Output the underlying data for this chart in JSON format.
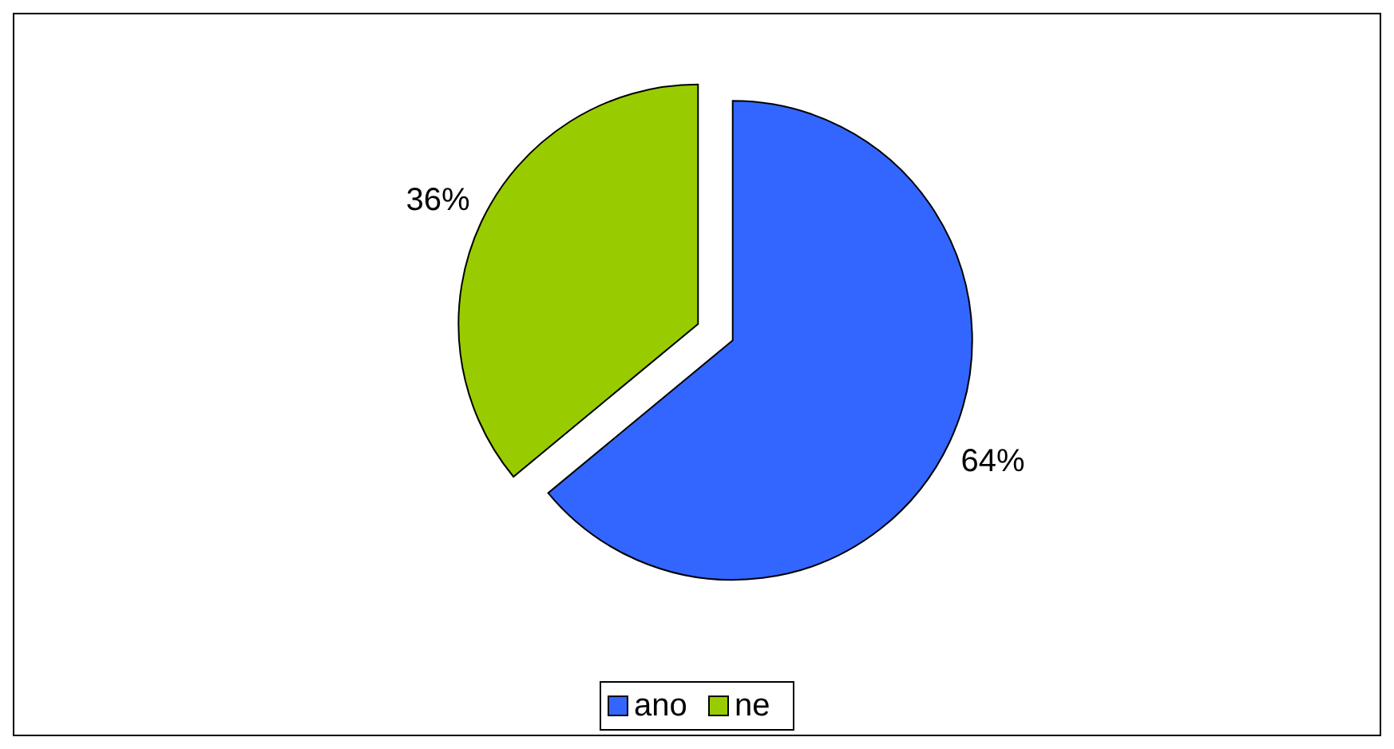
{
  "chart_data": {
    "type": "pie",
    "categories": [
      "ano",
      "ne"
    ],
    "values": [
      64,
      36
    ],
    "colors": [
      "#3366ff",
      "#99cc00"
    ],
    "value_labels": [
      "64%",
      "36%"
    ],
    "legend": "bottom"
  }
}
